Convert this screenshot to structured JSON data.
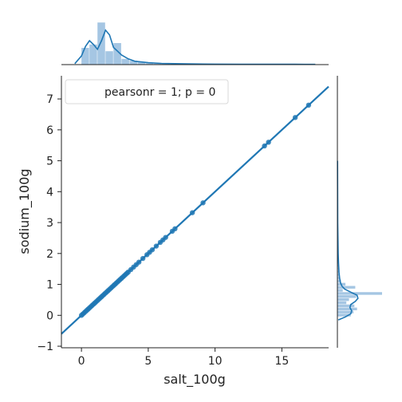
{
  "chart_data": {
    "type": "jointplot",
    "title": "",
    "xlabel": "salt_100g",
    "ylabel": "sodium_100g",
    "xlim": [
      -1.5,
      18.5
    ],
    "ylim": [
      -1.05,
      7.75
    ],
    "xticks": [
      0,
      5,
      10,
      15
    ],
    "yticks": [
      -1,
      0,
      1,
      2,
      3,
      4,
      5,
      6,
      7
    ],
    "annotation": "pearsonr = 1; p = 0",
    "legend_position": "top-left",
    "grid": false,
    "colors": {
      "primary": "#1f77b4",
      "hist": "#8fb8dc"
    },
    "scatter": {
      "name": "points",
      "x": [
        0,
        0.1,
        0.2,
        0.3,
        0.4,
        0.5,
        0.6,
        0.7,
        0.8,
        0.9,
        1.0,
        1.1,
        1.2,
        1.3,
        1.4,
        1.5,
        1.6,
        1.7,
        1.8,
        1.9,
        2.0,
        2.1,
        2.2,
        2.3,
        2.4,
        2.5,
        2.6,
        2.7,
        2.8,
        2.9,
        3.0,
        3.1,
        3.2,
        3.3,
        3.4,
        3.5,
        3.7,
        3.9,
        4.1,
        4.3,
        4.6,
        4.9,
        5.1,
        5.3,
        5.6,
        5.9,
        6.1,
        6.3,
        6.8,
        7.0,
        8.3,
        9.1,
        13.7,
        14.0,
        16.0,
        17.0
      ],
      "y": [
        0,
        0.04,
        0.08,
        0.12,
        0.16,
        0.2,
        0.24,
        0.28,
        0.32,
        0.36,
        0.4,
        0.44,
        0.48,
        0.52,
        0.56,
        0.6,
        0.64,
        0.68,
        0.72,
        0.76,
        0.8,
        0.84,
        0.88,
        0.92,
        0.96,
        1.0,
        1.04,
        1.08,
        1.12,
        1.16,
        1.2,
        1.24,
        1.28,
        1.32,
        1.36,
        1.4,
        1.48,
        1.56,
        1.64,
        1.72,
        1.84,
        1.96,
        2.04,
        2.12,
        2.24,
        2.36,
        2.44,
        2.52,
        2.72,
        2.8,
        3.32,
        3.64,
        5.48,
        5.6,
        6.4,
        6.8
      ]
    },
    "regression": {
      "slope": 0.4,
      "intercept": 0.0
    },
    "marginal_x": {
      "bin_edges": [
        0,
        0.6,
        1.2,
        1.8,
        2.4,
        3.0,
        3.6,
        4.2,
        4.8,
        5.4,
        6.0,
        6.6,
        7.2,
        7.8,
        8.4,
        9.0,
        9.6,
        10.2,
        10.8,
        11.4,
        12.0,
        12.6,
        13.2,
        13.8,
        14.4,
        15.0,
        15.6,
        16.2,
        16.8,
        17.4
      ],
      "counts": [
        0.35,
        0.42,
        0.88,
        0.28,
        0.45,
        0.12,
        0.08,
        0.05,
        0.03,
        0.02,
        0.02,
        0.01,
        0.01,
        0.01,
        0.01,
        0.01,
        0.005,
        0.005,
        0.005,
        0.005,
        0.005,
        0.005,
        0.005,
        0.01,
        0.005,
        0.005,
        0.005,
        0.005,
        0.005
      ],
      "kde_x": [
        -0.5,
        0,
        0.3,
        0.6,
        0.9,
        1.2,
        1.5,
        1.8,
        2.1,
        2.4,
        2.7,
        3.0,
        3.5,
        4.0,
        5.0,
        6.0,
        8.0,
        10.0,
        12.0,
        14.0,
        16.0,
        17.5
      ],
      "kde_y": [
        0.02,
        0.18,
        0.38,
        0.5,
        0.42,
        0.32,
        0.5,
        0.72,
        0.62,
        0.36,
        0.28,
        0.2,
        0.12,
        0.07,
        0.04,
        0.025,
        0.015,
        0.01,
        0.008,
        0.008,
        0.006,
        0.005
      ]
    },
    "marginal_y": {
      "bin_edges": [
        -0.05,
        0.05,
        0.15,
        0.25,
        0.35,
        0.45,
        0.55,
        0.65,
        0.75,
        0.85,
        0.95,
        1.05,
        1.15,
        1.25,
        1.35,
        1.45,
        1.55,
        1.65,
        1.75,
        1.85,
        1.95,
        2.05,
        2.15,
        2.25,
        2.35,
        2.45,
        2.55
      ],
      "counts": [
        0.3,
        0.36,
        0.44,
        0.38,
        0.2,
        0.26,
        0.42,
        1.0,
        0.12,
        0.4,
        0.18,
        0.08,
        0.06,
        0.04,
        0.03,
        0.03,
        0.02,
        0.02,
        0.015,
        0.015,
        0.01,
        0.01,
        0.01,
        0.008,
        0.006,
        0.006
      ],
      "kde_y": [
        -0.15,
        -0.05,
        0.05,
        0.15,
        0.25,
        0.35,
        0.45,
        0.55,
        0.65,
        0.75,
        0.85,
        0.95,
        1.05,
        1.2,
        1.4,
        1.7,
        2.0,
        2.5,
        3.0,
        4.0,
        5.0
      ],
      "kde_x": [
        0.02,
        0.18,
        0.3,
        0.32,
        0.28,
        0.3,
        0.4,
        0.46,
        0.44,
        0.3,
        0.16,
        0.1,
        0.07,
        0.05,
        0.035,
        0.025,
        0.018,
        0.012,
        0.008,
        0.005,
        0.003
      ]
    }
  }
}
